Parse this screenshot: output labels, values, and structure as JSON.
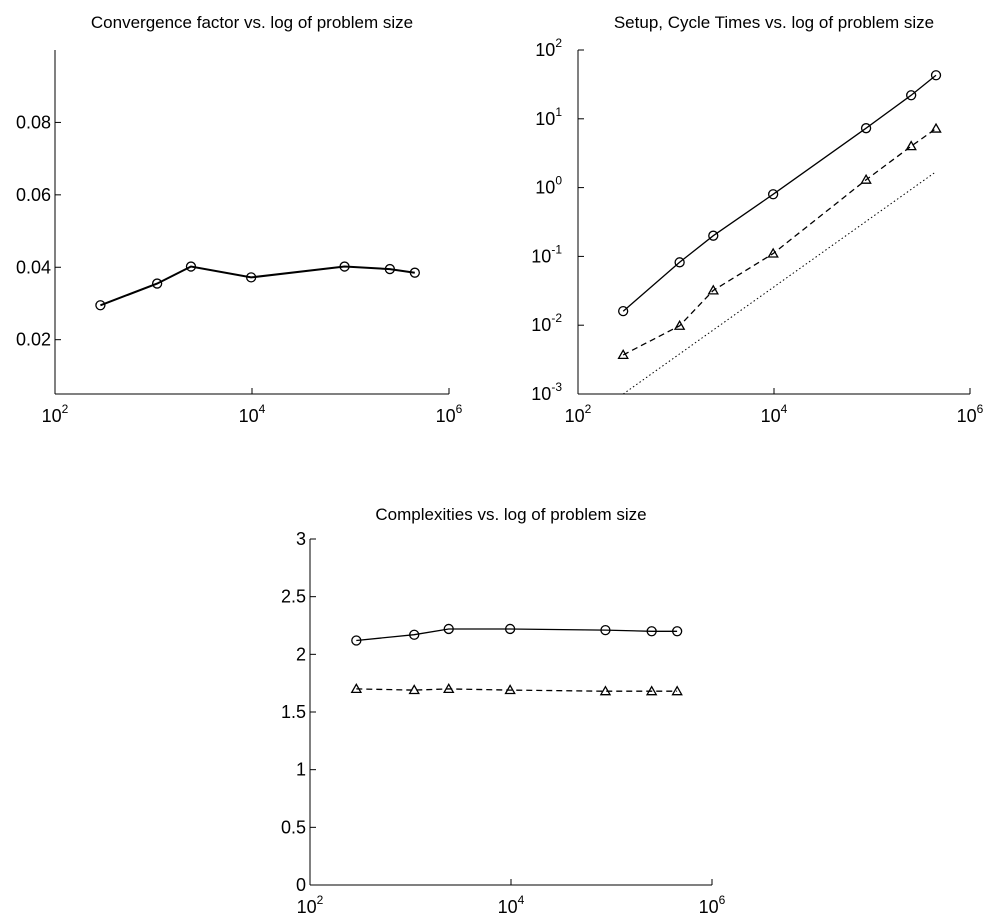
{
  "chart_data": [
    {
      "type": "line",
      "title": "Convergence factor vs. log of problem size",
      "xscale": "log",
      "xlim": [
        100,
        1000000
      ],
      "xticks": [
        100,
        10000,
        1000000
      ],
      "xtick_labels": [
        {
          "base": "10",
          "exp": "2"
        },
        {
          "base": "10",
          "exp": "4"
        },
        {
          "base": "10",
          "exp": "6"
        }
      ],
      "ylim": [
        0.005,
        0.1
      ],
      "yticks": [
        0.02,
        0.04,
        0.06,
        0.08
      ],
      "ytick_labels": [
        "0.02",
        "0.04",
        "0.06",
        "0.08"
      ],
      "grid": false,
      "series": [
        {
          "x": [
            289,
            1089,
            2401,
            9801,
            87025,
            251001,
            450000
          ],
          "y": [
            0.0295,
            0.0355,
            0.0402,
            0.0372,
            0.0402,
            0.0395,
            0.0385
          ],
          "marker": "circle",
          "linestyle": "solid"
        }
      ]
    },
    {
      "type": "line",
      "title": "Setup, Cycle Times vs. log of problem size",
      "xscale": "log",
      "yscale": "log",
      "xlim": [
        100,
        1000000
      ],
      "ylim": [
        0.001,
        100
      ],
      "xticks": [
        100,
        10000,
        1000000
      ],
      "xtick_labels": [
        {
          "base": "10",
          "exp": "2"
        },
        {
          "base": "10",
          "exp": "4"
        },
        {
          "base": "10",
          "exp": "6"
        }
      ],
      "yticks": [
        0.001,
        0.01,
        0.1,
        1,
        10,
        100
      ],
      "ytick_labels": [
        {
          "base": "10",
          "exp": "-3"
        },
        {
          "base": "10",
          "exp": "-2"
        },
        {
          "base": "10",
          "exp": "-1"
        },
        {
          "base": "10",
          "exp": "0"
        },
        {
          "base": "10",
          "exp": "1"
        },
        {
          "base": "10",
          "exp": "2"
        }
      ],
      "grid": false,
      "series": [
        {
          "x": [
            289,
            1089,
            2401,
            9801,
            87025,
            251001,
            450000
          ],
          "y": [
            0.016,
            0.082,
            0.2,
            0.8,
            7.3,
            22,
            43
          ],
          "marker": "circle",
          "linestyle": "solid"
        },
        {
          "x": [
            289,
            1089,
            2401,
            9801,
            87025,
            251001,
            450000
          ],
          "y": [
            0.0037,
            0.0098,
            0.032,
            0.11,
            1.3,
            4,
            7.2
          ],
          "marker": "triangle",
          "linestyle": "dashed"
        },
        {
          "x": [
            289,
            450000
          ],
          "y": [
            0.001,
            1.7
          ],
          "marker": "none",
          "linestyle": "dotted"
        }
      ]
    },
    {
      "type": "line",
      "title": "Complexities vs. log of problem size",
      "xscale": "log",
      "xlim": [
        100,
        1000000
      ],
      "ylim": [
        0,
        3
      ],
      "xticks": [
        100,
        10000,
        1000000
      ],
      "xtick_labels": [
        {
          "base": "10",
          "exp": "2"
        },
        {
          "base": "10",
          "exp": "4"
        },
        {
          "base": "10",
          "exp": "6"
        }
      ],
      "yticks": [
        0,
        0.5,
        1,
        1.5,
        2,
        2.5,
        3
      ],
      "ytick_labels": [
        "0",
        "0.5",
        "1",
        "1.5",
        "2",
        "2.5",
        "3"
      ],
      "grid": false,
      "series": [
        {
          "x": [
            289,
            1089,
            2401,
            9801,
            87025,
            251001,
            450000
          ],
          "y": [
            2.12,
            2.17,
            2.22,
            2.22,
            2.21,
            2.2,
            2.2
          ],
          "marker": "circle",
          "linestyle": "solid"
        },
        {
          "x": [
            289,
            1089,
            2401,
            9801,
            87025,
            251001,
            450000
          ],
          "y": [
            1.7,
            1.69,
            1.7,
            1.69,
            1.68,
            1.68,
            1.68
          ],
          "marker": "triangle",
          "linestyle": "dashed"
        }
      ]
    }
  ]
}
